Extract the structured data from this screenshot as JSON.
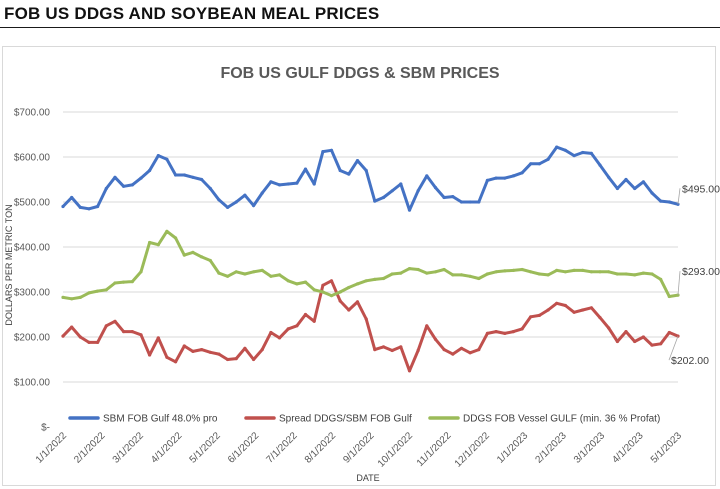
{
  "page": {
    "title": "FOB US DDGS AND SOYBEAN MEAL PRICES"
  },
  "chart_data": {
    "type": "line",
    "title": "FOB US GULF DDGS & SBM PRICES",
    "xlabel": "DATE",
    "ylabel": "DOLLARS PER METRIC TON",
    "ylim": [
      0,
      700
    ],
    "y_ticks": [
      0,
      100,
      200,
      300,
      400,
      500,
      600,
      700
    ],
    "y_tick_labels": [
      "$-",
      "$100.00",
      "$200.00",
      "$300.00",
      "$400.00",
      "$500.00",
      "$600.00",
      "$700.00"
    ],
    "x_tick_labels": [
      "1/1/2022",
      "2/1/2022",
      "3/1/2022",
      "4/1/2022",
      "5/1/2022",
      "6/1/2022",
      "7/1/2022",
      "8/1/2022",
      "9/1/2022",
      "10/1/2022",
      "11/1/2022",
      "12/1/2022",
      "1/1/2023",
      "2/1/2023",
      "3/1/2023",
      "4/1/2023",
      "5/1/2023"
    ],
    "grid": true,
    "legend_position": "bottom",
    "series": [
      {
        "name": "SBM FOB Gulf 48.0% pro",
        "color": "#4472c4",
        "values": [
          490,
          510,
          488,
          485,
          490,
          530,
          555,
          535,
          538,
          553,
          570,
          603,
          595,
          560,
          560,
          555,
          550,
          530,
          505,
          488,
          500,
          515,
          492,
          520,
          545,
          538,
          540,
          542,
          573,
          540,
          612,
          615,
          570,
          562,
          592,
          570,
          502,
          510,
          525,
          540,
          482,
          525,
          558,
          532,
          510,
          512,
          500,
          500,
          500,
          548,
          553,
          553,
          558,
          565,
          585,
          585,
          595,
          622,
          615,
          603,
          610,
          608,
          582,
          555,
          530,
          550,
          530,
          545,
          520,
          502,
          500,
          495
        ],
        "end_label": "$495.00"
      },
      {
        "name": "Spread DDGS/SBM FOB Gulf",
        "color": "#c0504d",
        "values": [
          202,
          222,
          200,
          188,
          188,
          225,
          235,
          212,
          212,
          205,
          160,
          198,
          155,
          145,
          180,
          168,
          172,
          166,
          162,
          150,
          152,
          175,
          150,
          172,
          210,
          198,
          218,
          225,
          250,
          235,
          315,
          325,
          280,
          260,
          278,
          240,
          172,
          178,
          170,
          178,
          125,
          170,
          225,
          195,
          172,
          162,
          175,
          165,
          172,
          208,
          212,
          208,
          212,
          218,
          245,
          248,
          260,
          275,
          270,
          255,
          260,
          265,
          243,
          220,
          190,
          212,
          190,
          200,
          182,
          185,
          210,
          202
        ],
        "end_label": "$202.00"
      },
      {
        "name": "DDGS FOB Vessel GULF  (min. 36 % Profat)",
        "color": "#9bbb59",
        "values": [
          288,
          285,
          288,
          298,
          302,
          305,
          320,
          322,
          323,
          345,
          410,
          405,
          435,
          420,
          382,
          388,
          378,
          370,
          342,
          335,
          345,
          340,
          345,
          348,
          335,
          338,
          325,
          318,
          322,
          305,
          300,
          292,
          300,
          310,
          318,
          325,
          328,
          330,
          340,
          342,
          352,
          350,
          342,
          345,
          350,
          338,
          338,
          335,
          330,
          340,
          345,
          347,
          348,
          350,
          345,
          340,
          338,
          348,
          345,
          348,
          348,
          345,
          345,
          345,
          340,
          340,
          338,
          342,
          340,
          328,
          290,
          293
        ],
        "end_label": "$293.00"
      }
    ]
  }
}
